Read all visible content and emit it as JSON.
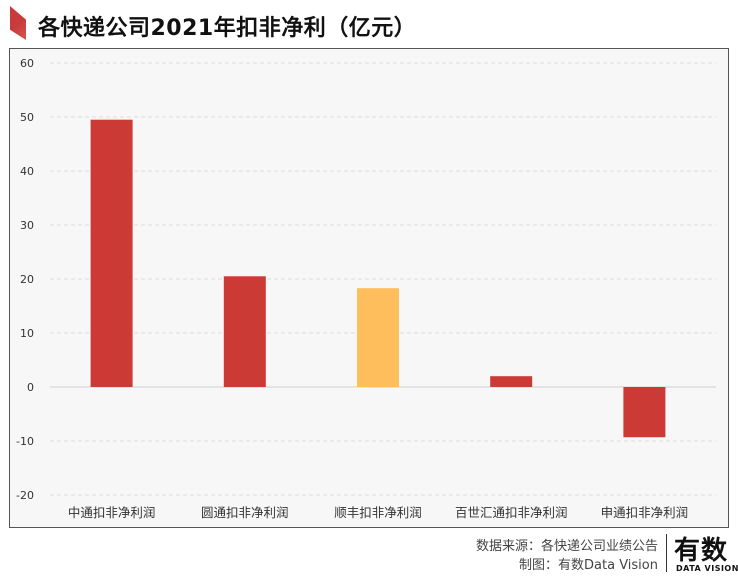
{
  "header": {
    "title": "各快递公司2021年扣非净利（亿元）"
  },
  "chart_data": {
    "type": "bar",
    "title": "各快递公司2021年扣非净利（亿元）",
    "xlabel": "",
    "ylabel": "",
    "ylim": [
      -20,
      60
    ],
    "yticks": [
      60,
      50,
      40,
      30,
      20,
      10,
      0,
      -10,
      -20
    ],
    "grid": true,
    "categories": [
      "中通扣非净利润",
      "圆通扣非净利润",
      "顺丰扣非净利润",
      "百世汇通扣非净利润",
      "申通扣非净利润"
    ],
    "values": [
      49.5,
      20.5,
      18.3,
      2.0,
      -9.3
    ],
    "colors": [
      "#cc3a35",
      "#cc3a35",
      "#ffbe5c",
      "#cc3a35",
      "#cc3a35"
    ]
  },
  "footer": {
    "source": "数据来源：各快递公司业绩公告",
    "maker": "制图：有数Data Vision"
  },
  "logo": {
    "main": "有数",
    "sub": "DATA VISION"
  }
}
